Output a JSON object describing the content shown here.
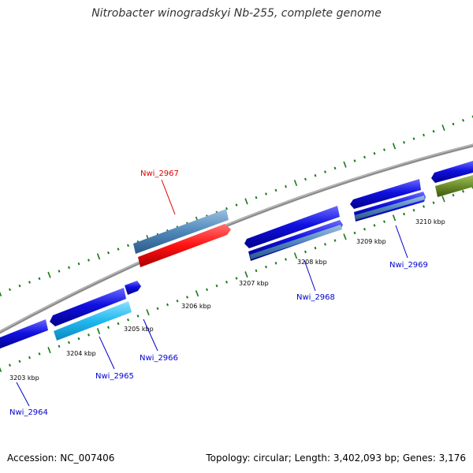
{
  "title": "Nitrobacter winogradskyi Nb-255, complete genome",
  "footer": {
    "accession": "Accession: NC_007406",
    "summary": "Topology: circular; Length: 3,402,093 bp; Genes: 3,176"
  },
  "kbp_labels": [
    "3203 kbp",
    "3204 kbp",
    "3205 kbp",
    "3206 kbp",
    "3207 kbp",
    "3208 kbp",
    "3209 kbp",
    "3210 kbp"
  ],
  "gene_labels": [
    {
      "id": "g2964",
      "text": "Nwi_2964",
      "color": "#0000cc"
    },
    {
      "id": "g2965",
      "text": "Nwi_2965",
      "color": "#0000cc"
    },
    {
      "id": "g2966",
      "text": "Nwi_2966",
      "color": "#0000cc"
    },
    {
      "id": "g2967",
      "text": "Nwi_2967",
      "color": "#dd0000"
    },
    {
      "id": "g2968",
      "text": "Nwi_2968",
      "color": "#0000cc"
    },
    {
      "id": "g2969",
      "text": "Nwi_2969",
      "color": "#0000cc"
    }
  ],
  "colors": {
    "backbone": "#8c8c8c",
    "cds_forward": "#1010e0",
    "cds_reverse": "#1010e0",
    "rna_light_blue": "#22b8ee",
    "steel_blue": "#5088bb",
    "highlight_red": "#ff1111",
    "olive": "#6b8c2a",
    "tick": "#1a7a1a"
  }
}
